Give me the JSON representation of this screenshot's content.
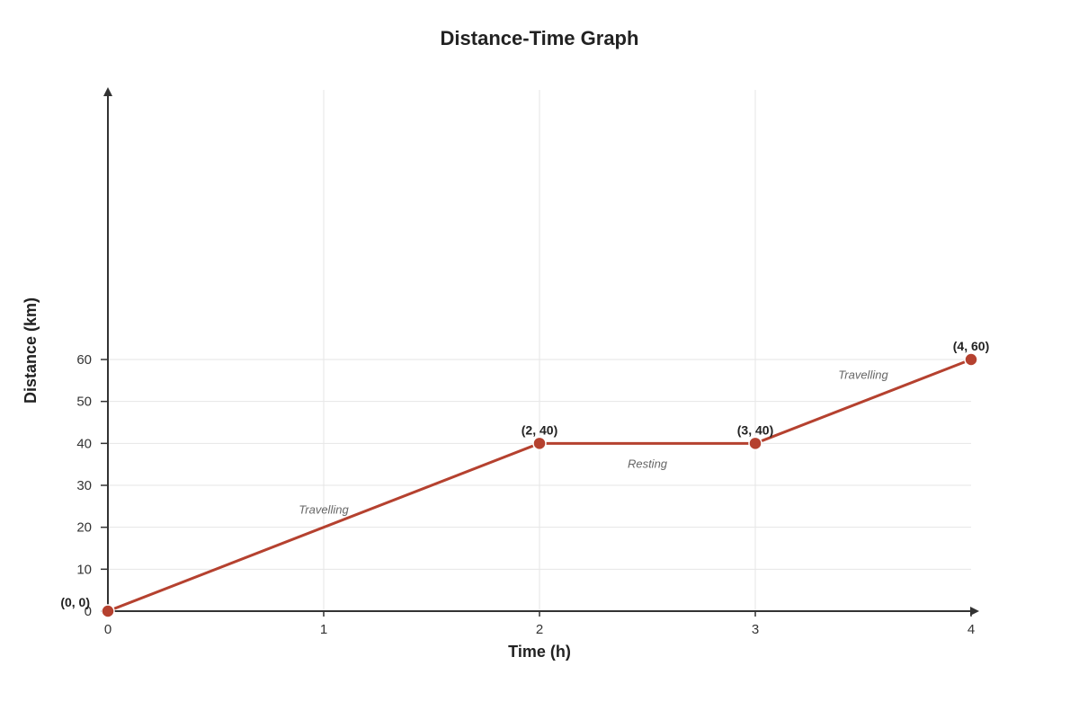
{
  "chart_data": {
    "type": "line",
    "title": "Distance-Time Graph",
    "xlabel": "Time (h)",
    "ylabel": "Distance (km)",
    "xlim": [
      0,
      4
    ],
    "ylim": [
      0,
      60
    ],
    "x_ticks": [
      "0",
      "1",
      "2",
      "3",
      "4"
    ],
    "y_ticks": [
      "0",
      "10",
      "20",
      "30",
      "40",
      "50",
      "60"
    ],
    "grid": true,
    "series": [
      {
        "color": "#b5412f",
        "points": [
          {
            "x": 0,
            "y": 0,
            "label": "(0, 0)"
          },
          {
            "x": 2,
            "y": 40,
            "label": "(2, 40)"
          },
          {
            "x": 3,
            "y": 40,
            "label": "(3, 40)"
          },
          {
            "x": 4,
            "y": 60,
            "label": "(4, 60)"
          }
        ]
      }
    ],
    "annotations": [
      {
        "text": "Travelling",
        "x": 1,
        "y": 20
      },
      {
        "text": "Resting",
        "x": 2.5,
        "y": 40
      },
      {
        "text": "Travelling",
        "x": 3.5,
        "y": 50
      }
    ]
  }
}
